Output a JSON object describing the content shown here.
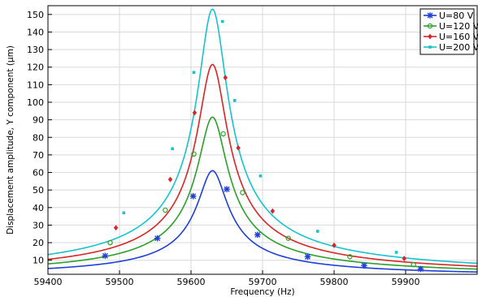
{
  "chart_data": {
    "type": "line",
    "title": "",
    "xlabel": "Frequency (Hz)",
    "ylabel": "Displacement amplitude, Y component (µm)",
    "xlim": [
      59400,
      60000
    ],
    "ylim": [
      2,
      155
    ],
    "x_ticks": [
      59400,
      59500,
      59600,
      59700,
      59800,
      59900
    ],
    "y_ticks": [
      10,
      20,
      30,
      40,
      50,
      60,
      70,
      80,
      90,
      100,
      110,
      120,
      130,
      140,
      150
    ],
    "grid": true,
    "legend_position": "top-right",
    "resonance": {
      "f0": 59630,
      "gamma": 20
    },
    "x": [
      59400,
      59450,
      59500,
      59550,
      59575,
      59600,
      59610,
      59620,
      59625,
      59630,
      59635,
      59640,
      59650,
      59660,
      59685,
      59700,
      59750,
      59800,
      59850,
      59900,
      59950,
      60000
    ],
    "series": [
      {
        "name": "U=80 V",
        "color": "#1f3fd8",
        "marker": "star",
        "peak": 61,
        "offset": 0,
        "markers": [
          [
            59480,
            12.5
          ],
          [
            59553,
            22.5
          ],
          [
            59603,
            46.5
          ],
          [
            59650,
            50.5
          ],
          [
            59693,
            24.5
          ],
          [
            59763,
            12
          ],
          [
            59842,
            7
          ],
          [
            59921,
            5
          ]
        ]
      },
      {
        "name": "U=120 V",
        "color": "#2ca02c",
        "marker": "circle",
        "peak": 91.5,
        "offset": 0,
        "markers": [
          [
            59487,
            20
          ],
          [
            59564,
            38.5
          ],
          [
            59604,
            70.5
          ],
          [
            59645,
            82
          ],
          [
            59672,
            48.5
          ],
          [
            59736,
            22.5
          ],
          [
            59822,
            12
          ],
          [
            59911,
            7.5
          ]
        ]
      },
      {
        "name": "U=160 V",
        "color": "#d62728",
        "marker": "diamond",
        "peak": 121.5,
        "offset": 0,
        "markers": [
          [
            59495,
            28.5
          ],
          [
            59571,
            56
          ],
          [
            59605,
            94
          ],
          [
            59648,
            114
          ],
          [
            59666,
            74
          ],
          [
            59714,
            38
          ],
          [
            59800,
            18.5
          ],
          [
            59898,
            11
          ]
        ]
      },
      {
        "name": "U=200 V",
        "color": "#17c3cc",
        "marker": "square",
        "peak": 153,
        "offset": 0,
        "markers": [
          [
            59506,
            37
          ],
          [
            59574,
            73.5
          ],
          [
            59604,
            117
          ],
          [
            59644,
            146
          ],
          [
            59661,
            101
          ],
          [
            59697,
            58
          ],
          [
            59777,
            26.5
          ],
          [
            59887,
            14.5
          ]
        ]
      }
    ]
  }
}
